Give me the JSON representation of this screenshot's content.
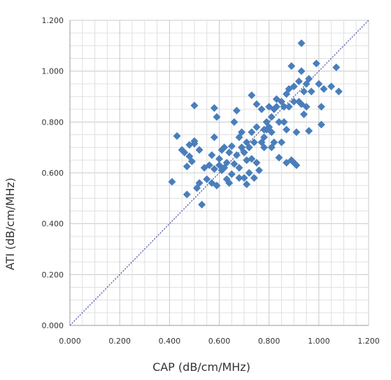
{
  "chart_data": {
    "type": "scatter",
    "title": "",
    "xlabel": "CAP (dB/cm/MHz)",
    "ylabel": "ATI (dB/cm/MHz)",
    "xlim": [
      0,
      1.2
    ],
    "ylim": [
      0,
      1.2
    ],
    "x_ticks": [
      "0.000",
      "0.200",
      "0.400",
      "0.600",
      "0.800",
      "1.000",
      "1.200"
    ],
    "y_ticks": [
      "0.000",
      "0.200",
      "0.400",
      "0.600",
      "0.800",
      "1.000",
      "1.200"
    ],
    "grid": true,
    "reference_line": {
      "style": "dotted",
      "from": [
        0,
        0
      ],
      "to": [
        1.2,
        1.2
      ]
    },
    "marker": "diamond",
    "color": "#4a7ebb",
    "series": [
      {
        "points": [
          [
            0.41,
            0.565
          ],
          [
            0.43,
            0.745
          ],
          [
            0.45,
            0.69
          ],
          [
            0.46,
            0.68
          ],
          [
            0.47,
            0.625
          ],
          [
            0.47,
            0.515
          ],
          [
            0.48,
            0.665
          ],
          [
            0.48,
            0.71
          ],
          [
            0.49,
            0.645
          ],
          [
            0.5,
            0.715
          ],
          [
            0.5,
            0.725
          ],
          [
            0.5,
            0.865
          ],
          [
            0.51,
            0.54
          ],
          [
            0.52,
            0.56
          ],
          [
            0.52,
            0.69
          ],
          [
            0.53,
            0.475
          ],
          [
            0.54,
            0.62
          ],
          [
            0.55,
            0.575
          ],
          [
            0.56,
            0.63
          ],
          [
            0.57,
            0.56
          ],
          [
            0.57,
            0.67
          ],
          [
            0.58,
            0.74
          ],
          [
            0.58,
            0.615
          ],
          [
            0.58,
            0.855
          ],
          [
            0.59,
            0.82
          ],
          [
            0.59,
            0.55
          ],
          [
            0.6,
            0.63
          ],
          [
            0.6,
            0.655
          ],
          [
            0.61,
            0.69
          ],
          [
            0.61,
            0.61
          ],
          [
            0.62,
            0.7
          ],
          [
            0.62,
            0.62
          ],
          [
            0.63,
            0.575
          ],
          [
            0.63,
            0.64
          ],
          [
            0.64,
            0.68
          ],
          [
            0.64,
            0.56
          ],
          [
            0.65,
            0.705
          ],
          [
            0.65,
            0.595
          ],
          [
            0.66,
            0.8
          ],
          [
            0.66,
            0.635
          ],
          [
            0.67,
            0.67
          ],
          [
            0.67,
            0.845
          ],
          [
            0.68,
            0.74
          ],
          [
            0.68,
            0.62
          ],
          [
            0.68,
            0.58
          ],
          [
            0.69,
            0.76
          ],
          [
            0.69,
            0.7
          ],
          [
            0.7,
            0.68
          ],
          [
            0.7,
            0.58
          ],
          [
            0.71,
            0.65
          ],
          [
            0.71,
            0.72
          ],
          [
            0.71,
            0.555
          ],
          [
            0.72,
            0.7
          ],
          [
            0.72,
            0.6
          ],
          [
            0.73,
            0.905
          ],
          [
            0.73,
            0.76
          ],
          [
            0.73,
            0.655
          ],
          [
            0.74,
            0.72
          ],
          [
            0.74,
            0.58
          ],
          [
            0.75,
            0.87
          ],
          [
            0.75,
            0.78
          ],
          [
            0.75,
            0.64
          ],
          [
            0.76,
            0.61
          ],
          [
            0.77,
            0.72
          ],
          [
            0.77,
            0.85
          ],
          [
            0.78,
            0.77
          ],
          [
            0.78,
            0.74
          ],
          [
            0.78,
            0.7
          ],
          [
            0.79,
            0.8
          ],
          [
            0.79,
            0.77
          ],
          [
            0.8,
            0.86
          ],
          [
            0.8,
            0.78
          ],
          [
            0.81,
            0.76
          ],
          [
            0.81,
            0.82
          ],
          [
            0.81,
            0.7
          ],
          [
            0.82,
            0.85
          ],
          [
            0.82,
            0.72
          ],
          [
            0.83,
            0.89
          ],
          [
            0.83,
            0.86
          ],
          [
            0.84,
            0.66
          ],
          [
            0.84,
            0.8
          ],
          [
            0.85,
            0.88
          ],
          [
            0.85,
            0.72
          ],
          [
            0.86,
            0.86
          ],
          [
            0.86,
            0.8
          ],
          [
            0.87,
            0.91
          ],
          [
            0.87,
            0.64
          ],
          [
            0.87,
            0.77
          ],
          [
            0.88,
            0.93
          ],
          [
            0.88,
            0.86
          ],
          [
            0.89,
            1.02
          ],
          [
            0.89,
            0.65
          ],
          [
            0.9,
            0.94
          ],
          [
            0.9,
            0.88
          ],
          [
            0.9,
            0.64
          ],
          [
            0.91,
            0.76
          ],
          [
            0.91,
            0.63
          ],
          [
            0.92,
            0.96
          ],
          [
            0.92,
            0.88
          ],
          [
            0.93,
            1.11
          ],
          [
            0.93,
            1.0
          ],
          [
            0.93,
            0.87
          ],
          [
            0.94,
            0.92
          ],
          [
            0.94,
            0.83
          ],
          [
            0.95,
            0.95
          ],
          [
            0.95,
            0.86
          ],
          [
            0.96,
            0.97
          ],
          [
            0.96,
            0.765
          ],
          [
            0.97,
            0.92
          ],
          [
            0.99,
            1.03
          ],
          [
            1.0,
            0.95
          ],
          [
            1.01,
            0.86
          ],
          [
            1.01,
            0.79
          ],
          [
            1.02,
            0.93
          ],
          [
            1.05,
            0.94
          ],
          [
            1.07,
            1.015
          ],
          [
            1.08,
            0.92
          ]
        ]
      }
    ]
  }
}
